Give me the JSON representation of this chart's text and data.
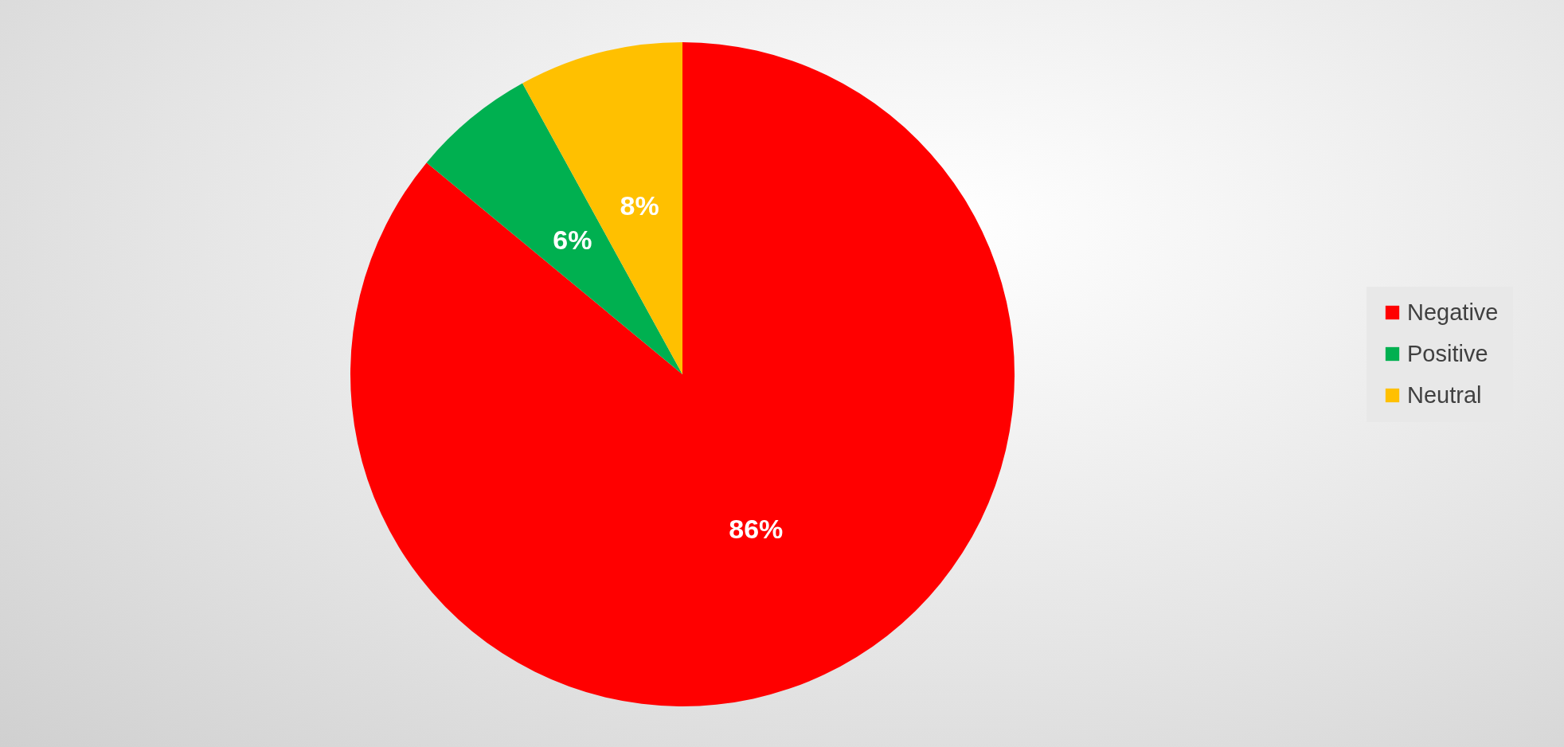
{
  "chart_data": {
    "type": "pie",
    "categories": [
      "Negative",
      "Positive",
      "Neutral"
    ],
    "values": [
      86,
      6,
      8
    ],
    "colors": [
      "#ff0000",
      "#00b050",
      "#ffc000"
    ],
    "value_labels": [
      "86%",
      "6%",
      "8%"
    ],
    "legend": "right"
  }
}
